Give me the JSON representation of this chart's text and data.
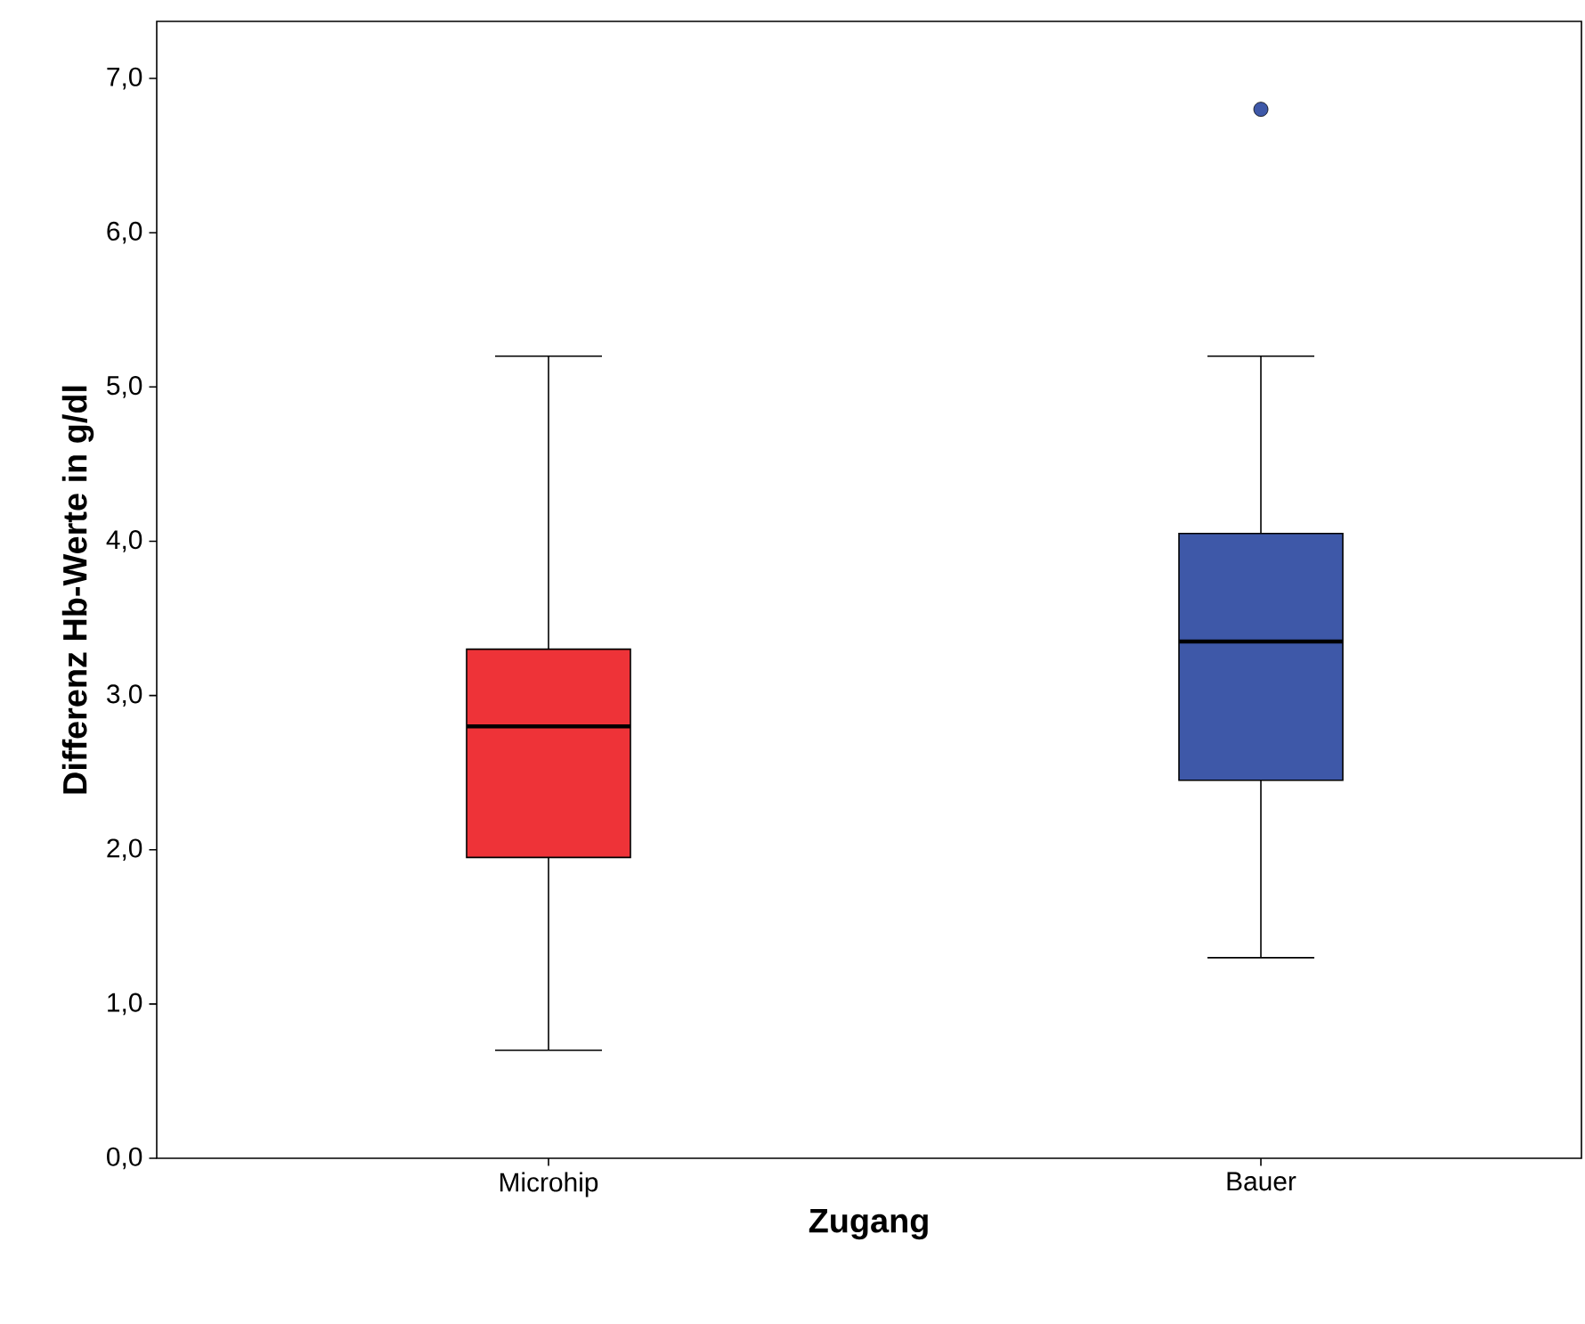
{
  "chart_data": {
    "type": "box",
    "xlabel": "Zugang",
    "ylabel": "Differenz Hb-Werte in g/dl",
    "categories": [
      "Microhip",
      "Bauer"
    ],
    "colors": [
      "#ee3338",
      "#3e58a8"
    ],
    "boxes": [
      {
        "low": 0.7,
        "q1": 1.95,
        "median": 2.8,
        "q3": 3.3,
        "high": 5.2
      },
      {
        "low": 1.3,
        "q1": 2.45,
        "median": 3.35,
        "q3": 4.05,
        "high": 5.2,
        "outliers": [
          6.8
        ]
      }
    ],
    "ylim": [
      0,
      7.37
    ],
    "yticks": [
      {
        "value": 0,
        "label": "0,0"
      },
      {
        "value": 1,
        "label": "1,0"
      },
      {
        "value": 2,
        "label": "2,0"
      },
      {
        "value": 3,
        "label": "3,0"
      },
      {
        "value": 4,
        "label": "4,0"
      },
      {
        "value": 5,
        "label": "5,0"
      },
      {
        "value": 6,
        "label": "6,0"
      },
      {
        "value": 7,
        "label": "7,0"
      }
    ],
    "grid": false
  }
}
